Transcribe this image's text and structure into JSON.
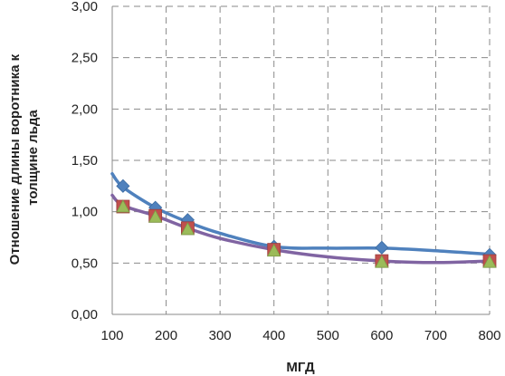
{
  "chart_data": {
    "type": "line",
    "xlabel": "МГД",
    "ylabel_lines": [
      "Отношение длины воротника к",
      "толщине льда"
    ],
    "xlim": [
      100,
      800
    ],
    "ylim": [
      0,
      3
    ],
    "x_ticks": [
      "100",
      "200",
      "300",
      "400",
      "500",
      "600",
      "700",
      "800"
    ],
    "y_ticks": [
      "0,00",
      "0,50",
      "1,00",
      "1,50",
      "2,00",
      "2,50",
      "3,00"
    ],
    "grid": true,
    "grid_style": "dashed",
    "legend": "none",
    "series": [
      {
        "marker": "diamond",
        "line_color": "#4f81bd",
        "marker_color": "#4f81bd",
        "x": [
          120,
          180,
          240,
          400,
          600,
          800
        ],
        "y": [
          1.25,
          1.04,
          0.92,
          0.66,
          0.65,
          0.58
        ]
      },
      {
        "marker": "square",
        "line_color": "#8064a2",
        "marker_color": "#c0504d",
        "x": [
          120,
          180,
          240,
          400,
          600,
          800
        ],
        "y": [
          1.05,
          0.96,
          0.84,
          0.63,
          0.52,
          0.52
        ]
      },
      {
        "marker": "triangle",
        "line_color": "#8064a2",
        "marker_color": "#9bbb59",
        "x": [
          120,
          180,
          240,
          400,
          600,
          800
        ],
        "y": [
          1.05,
          0.95,
          0.83,
          0.62,
          0.51,
          0.51
        ]
      }
    ],
    "trend_lines": [
      {
        "color": "#4f81bd",
        "x": [
          100,
          120,
          180,
          240,
          300,
          400,
          500,
          600,
          700,
          800
        ],
        "y": [
          1.37,
          1.24,
          1.04,
          0.9,
          0.79,
          0.66,
          0.645,
          0.645,
          0.62,
          0.585
        ]
      },
      {
        "color": "#8064a2",
        "x": [
          100,
          120,
          180,
          240,
          300,
          400,
          500,
          600,
          700,
          800
        ],
        "y": [
          1.16,
          1.06,
          0.96,
          0.84,
          0.74,
          0.63,
          0.56,
          0.52,
          0.505,
          0.52
        ]
      }
    ]
  }
}
